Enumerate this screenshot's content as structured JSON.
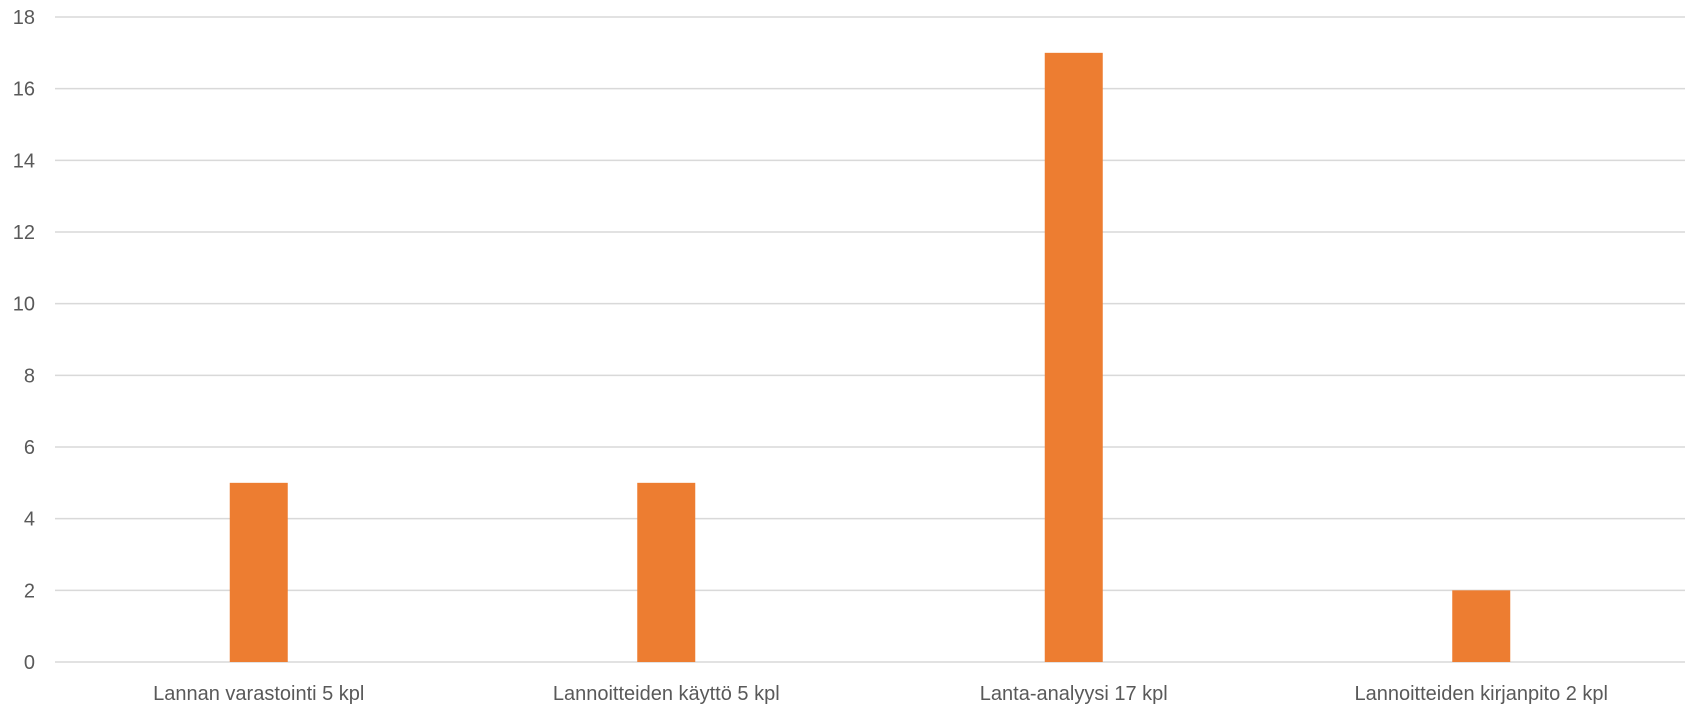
{
  "chart_data": {
    "type": "bar",
    "categories": [
      "Lannan varastointi 5 kpl",
      "Lannoitteiden käyttö 5 kpl",
      "Lanta-analyysi  17 kpl",
      "Lannoitteiden kirjanpito 2 kpl"
    ],
    "values": [
      5,
      5,
      17,
      2
    ],
    "ylim": [
      0,
      18
    ],
    "yticks": [
      "0",
      "2",
      "4",
      "6",
      "8",
      "10",
      "12",
      "14",
      "16",
      "18"
    ],
    "title": "",
    "xlabel": "",
    "ylabel": "",
    "grid": true,
    "legend": "none",
    "colors": {
      "bar": "#ED7D31",
      "grid": "#D9D9D9",
      "text": "#595959"
    }
  }
}
